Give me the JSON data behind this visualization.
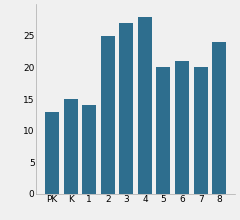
{
  "categories": [
    "PK",
    "K",
    "1",
    "2",
    "3",
    "4",
    "5",
    "6",
    "7",
    "8"
  ],
  "values": [
    13,
    15,
    14,
    25,
    27,
    28,
    20,
    21,
    20,
    24
  ],
  "bar_color": "#2e6e8e",
  "ylim": [
    0,
    30
  ],
  "yticks": [
    0,
    5,
    10,
    15,
    20,
    25
  ],
  "background_color": "#f0f0f0",
  "bar_width": 0.75
}
